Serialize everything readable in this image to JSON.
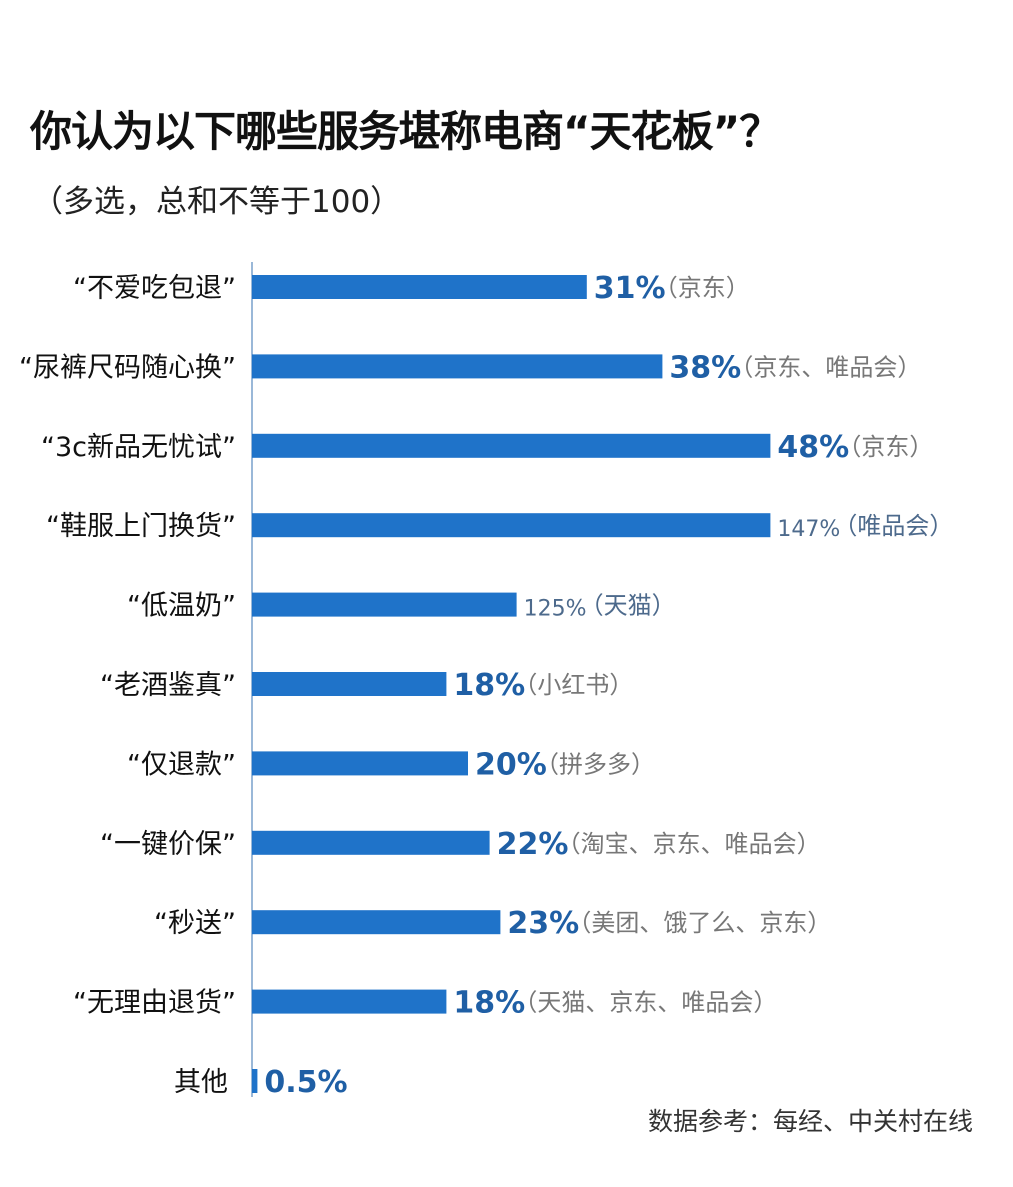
{
  "chart_data": {
    "type": "bar",
    "orientation": "horizontal",
    "title": "你认为以下哪些服务堪称电商“天花板”？",
    "subtitle": "（多选，总和不等于100）",
    "source": "数据参考：每经、中关村在线",
    "categories": [
      "“不爱吃包退”",
      "“尿裤尺码随心换”",
      "“3c新品无忧试”",
      "“鞋服上门换货”",
      "“低温奶”",
      "“老酒鉴真”",
      "“仅退款”",
      "“一键价保”",
      "“秒送”",
      "“无理由退货”",
      "其他"
    ],
    "values": [
      31,
      38,
      48,
      147,
      125,
      18,
      20,
      22,
      23,
      18,
      0.5
    ],
    "value_labels": [
      "31%",
      "38%",
      "48%",
      "147%",
      "125%",
      "18%",
      "20%",
      "22%",
      "23%",
      "18%",
      "0.5%"
    ],
    "platform_notes": [
      "（京东）",
      "（京东、唯品会）",
      "（京东）",
      "（唯品会）",
      "（天猫）",
      "（小红书）",
      "（拼多多）",
      "（淘宝、京东、唯品会）",
      "（美团、饿了么、京东）",
      "（天猫、京东、唯品会）",
      ""
    ],
    "display_lengths_percent": [
      31,
      38,
      48,
      48,
      24.5,
      18,
      20,
      22,
      23,
      18,
      0.5
    ],
    "xlabel": "",
    "ylabel": "",
    "grid": false,
    "legend": "none",
    "colors": {
      "bar": "#1f73c9",
      "value_bold": "#1f5fa5",
      "value_plain": "#4d6a8c",
      "note": "#777777",
      "axis": "#9ab8d8"
    }
  }
}
